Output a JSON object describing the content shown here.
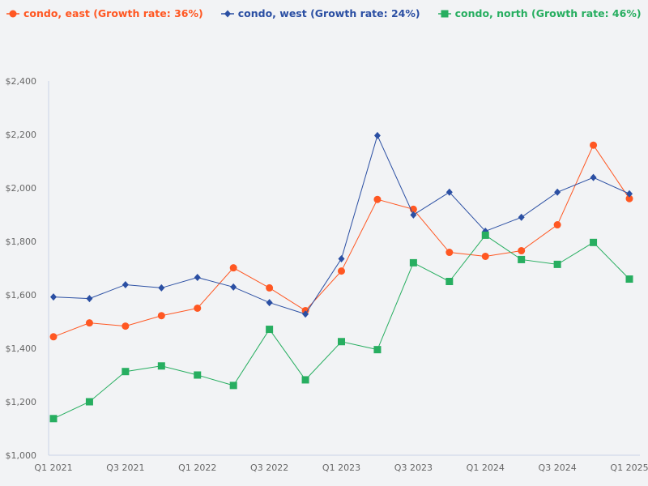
{
  "chart_data": {
    "type": "line",
    "title": "",
    "xlabel": "",
    "ylabel": "",
    "x": [
      "Q1 2021",
      "Q2 2021",
      "Q3 2021",
      "Q4 2021",
      "Q1 2022",
      "Q2 2022",
      "Q3 2022",
      "Q4 2022",
      "Q1 2023",
      "Q2 2023",
      "Q3 2023",
      "Q4 2023",
      "Q1 2024",
      "Q2 2024",
      "Q3 2024",
      "Q4 2024",
      "Q1 2025"
    ],
    "x_tick_labels": [
      "Q1 2021",
      "Q3 2021",
      "Q1 2022",
      "Q3 2022",
      "Q1 2023",
      "Q3 2023",
      "Q1 2024",
      "Q3 2024",
      "Q1 2025"
    ],
    "y_ticks": [
      1000,
      1200,
      1400,
      1600,
      1800,
      2000,
      2200,
      2400
    ],
    "y_tick_labels": [
      "$1,000",
      "$1,200",
      "$1,400",
      "$1,600",
      "$1,800",
      "$2,000",
      "$2,200",
      "$2,400"
    ],
    "ylim": [
      1000,
      2400
    ],
    "grid": false,
    "legend_position": "top-left",
    "series": [
      {
        "name": "condo, east (Growth rate: 36%)",
        "color": "#ff5722",
        "marker": "circle",
        "values": [
          1443,
          1495,
          1483,
          1522,
          1550,
          1701,
          1626,
          1541,
          1689,
          1957,
          1920,
          1759,
          1744,
          1765,
          1862,
          2160,
          1960
        ]
      },
      {
        "name": "condo, west (Growth rate: 24%)",
        "color": "#2b4fa3",
        "marker": "diamond",
        "values": [
          1592,
          1586,
          1638,
          1626,
          1665,
          1629,
          1571,
          1528,
          1735,
          2196,
          1899,
          1984,
          1838,
          1890,
          1984,
          2039,
          1978
        ]
      },
      {
        "name": "condo, north (Growth rate: 46%)",
        "color": "#27ae60",
        "marker": "square",
        "values": [
          1137,
          1200,
          1313,
          1334,
          1300,
          1261,
          1471,
          1282,
          1425,
          1395,
          1720,
          1650,
          1823,
          1732,
          1714,
          1796,
          1659
        ]
      }
    ]
  }
}
